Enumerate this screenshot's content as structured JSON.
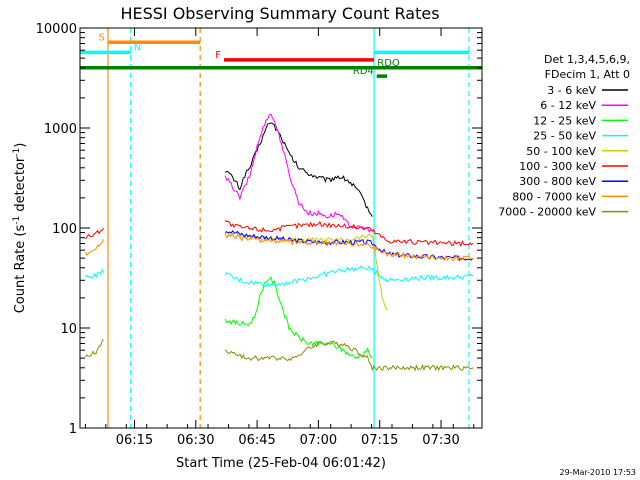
{
  "chart_data": {
    "type": "line",
    "title": "HESSI Observing Summary Count Rates",
    "xlabel": "Start Time (25-Feb-04 06:01:42)",
    "ylabel_prefix": "Count Rate (s",
    "ylabel_sup": "-1",
    "ylabel_mid": " detector",
    "ylabel_suffix": ")",
    "yscale": "log",
    "ylim": [
      1,
      10000
    ],
    "xlim": [
      6.028,
      7.667
    ],
    "x_ticks": [
      {
        "value": 6.25,
        "label": "06:15"
      },
      {
        "value": 6.5,
        "label": "06:30"
      },
      {
        "value": 6.75,
        "label": "06:45"
      },
      {
        "value": 7.0,
        "label": "07:00"
      },
      {
        "value": 7.25,
        "label": "07:15"
      },
      {
        "value": 7.5,
        "label": "07:30"
      }
    ],
    "y_ticks": [
      {
        "value": 1,
        "label": "1"
      },
      {
        "value": 10,
        "label": "10"
      },
      {
        "value": 100,
        "label": "100"
      },
      {
        "value": 1000,
        "label": "1000"
      },
      {
        "value": 10000,
        "label": "10000"
      }
    ],
    "legend_header": [
      "Det 1,3,4,5,6,9,",
      "FDecim 1, Att 0"
    ],
    "legend_position": "right",
    "timestamp": "29-Mar-2010 17:53",
    "series": [
      {
        "name": "3 - 6 keV",
        "color": "#000000",
        "x": [
          6.62,
          6.65,
          6.68,
          6.7,
          6.72,
          6.75,
          6.78,
          6.8,
          6.82,
          6.85,
          6.88,
          6.92,
          6.96,
          7.0,
          7.04,
          7.08,
          7.12,
          7.16,
          7.2,
          7.22
        ],
        "y": [
          380,
          320,
          250,
          340,
          400,
          600,
          900,
          1150,
          1050,
          800,
          550,
          400,
          350,
          320,
          300,
          330,
          300,
          240,
          160,
          130
        ]
      },
      {
        "name": "6 - 12 keV",
        "color": "#ff00ff",
        "x": [
          6.62,
          6.65,
          6.68,
          6.7,
          6.72,
          6.75,
          6.78,
          6.8,
          6.82,
          6.85,
          6.88,
          6.92,
          6.96,
          7.0,
          7.04,
          7.08,
          7.12,
          7.16,
          7.2,
          7.22
        ],
        "y": [
          320,
          260,
          200,
          260,
          330,
          650,
          1100,
          1400,
          1200,
          700,
          350,
          180,
          140,
          140,
          130,
          140,
          110,
          100,
          98,
          95
        ]
      },
      {
        "name": "12 - 25 keV",
        "color": "#00ff00",
        "x": [
          6.62,
          6.68,
          6.72,
          6.74,
          6.76,
          6.78,
          6.8,
          6.82,
          6.84,
          6.88,
          6.92,
          6.96,
          7.0,
          7.05,
          7.1,
          7.15,
          7.2,
          7.22
        ],
        "y": [
          12,
          11,
          11,
          13,
          20,
          28,
          32,
          28,
          20,
          10,
          8,
          7,
          7,
          7,
          6,
          5,
          6,
          5
        ]
      },
      {
        "name": "25 - 50 keV",
        "color": "#00ffff",
        "x": [
          6.05,
          6.1,
          6.13,
          6.62,
          6.66,
          6.7,
          6.75,
          6.8,
          6.85,
          6.9,
          6.95,
          7.0,
          7.05,
          7.1,
          7.15,
          7.2,
          7.22,
          7.28,
          7.35,
          7.45,
          7.55,
          7.63
        ],
        "y": [
          32,
          34,
          38,
          35,
          31,
          29,
          28,
          27,
          28,
          29,
          31,
          33,
          36,
          38,
          39,
          40,
          38,
          30,
          31,
          32,
          32,
          33
        ]
      },
      {
        "name": "50 - 100 keV",
        "color": "#cccc00",
        "x": [
          6.62,
          6.7,
          6.8,
          6.9,
          7.0,
          7.1,
          7.16,
          7.22,
          7.26,
          7.28
        ],
        "y": [
          90,
          82,
          78,
          76,
          75,
          76,
          80,
          85,
          20,
          15
        ]
      },
      {
        "name": "100 - 300 keV",
        "color": "#ff0000",
        "x": [
          6.05,
          6.1,
          6.13,
          6.62,
          6.65,
          6.7,
          6.8,
          6.9,
          7.0,
          7.1,
          7.2,
          7.22,
          7.28,
          7.4,
          7.55,
          7.63
        ],
        "y": [
          80,
          90,
          105,
          120,
          105,
          100,
          95,
          105,
          110,
          105,
          100,
          95,
          75,
          72,
          70,
          70
        ]
      },
      {
        "name": "300 - 800 keV",
        "color": "#0000ff",
        "x": [
          6.62,
          6.7,
          6.8,
          6.9,
          7.0,
          7.1,
          7.2,
          7.22,
          7.28,
          7.4,
          7.55,
          7.63
        ],
        "y": [
          95,
          85,
          80,
          75,
          72,
          72,
          72,
          70,
          55,
          52,
          50,
          50
        ]
      },
      {
        "name": "800 - 7000 keV",
        "color": "#ff8c00",
        "x": [
          6.05,
          6.1,
          6.13,
          6.62,
          6.7,
          6.8,
          6.9,
          7.0,
          7.1,
          7.2,
          7.22,
          7.28,
          7.4,
          7.55,
          7.63
        ],
        "y": [
          55,
          65,
          80,
          85,
          78,
          75,
          72,
          70,
          70,
          68,
          65,
          55,
          52,
          50,
          50
        ]
      },
      {
        "name": "7000 - 20000 keV",
        "color": "#8b8b00",
        "x": [
          6.05,
          6.1,
          6.13,
          6.62,
          6.7,
          6.8,
          6.9,
          6.95,
          7.0,
          7.05,
          7.1,
          7.15,
          7.2,
          7.22,
          7.28,
          7.4,
          7.55,
          7.63
        ],
        "y": [
          5,
          6,
          8,
          6,
          5,
          5,
          5,
          6,
          7,
          7,
          7,
          6,
          5,
          4,
          4,
          4,
          4,
          4
        ]
      }
    ],
    "vertical_lines": [
      {
        "x": 6.142,
        "color": "#ff8c00",
        "style": "solid"
      },
      {
        "x": 6.235,
        "color": "#00ffff",
        "style": "dashed"
      },
      {
        "x": 6.518,
        "color": "#ff8c00",
        "style": "dashed"
      },
      {
        "x": 7.227,
        "color": "#00ffff",
        "style": "solid"
      },
      {
        "x": 7.614,
        "color": "#00ffff",
        "style": "dashed"
      }
    ],
    "flag_bars": [
      {
        "label": "S",
        "color": "#ff8c00",
        "x0": 6.142,
        "x1": 6.518,
        "y": 7200,
        "label_side": "left"
      },
      {
        "label": "N",
        "color": "#00ffff",
        "x0": 6.028,
        "x1": 6.235,
        "y": 5700,
        "label_side": "right"
      },
      {
        "label": "F",
        "color": "#ff0000",
        "x0": 6.615,
        "x1": 7.227,
        "y": 4800,
        "label_side": "left"
      },
      {
        "label": "N",
        "color": "#00ffff",
        "x0": 7.227,
        "x1": 7.614,
        "y": 5700,
        "label_side": "none"
      },
      {
        "label": "RDO",
        "color": "#008000",
        "x0": 6.028,
        "x1": 7.667,
        "y": 4000,
        "label_side": "right-inner"
      },
      {
        "label": "RD4",
        "color": "#008000",
        "x0": 7.238,
        "x1": 7.28,
        "y": 3300,
        "label_side": "left"
      }
    ]
  }
}
